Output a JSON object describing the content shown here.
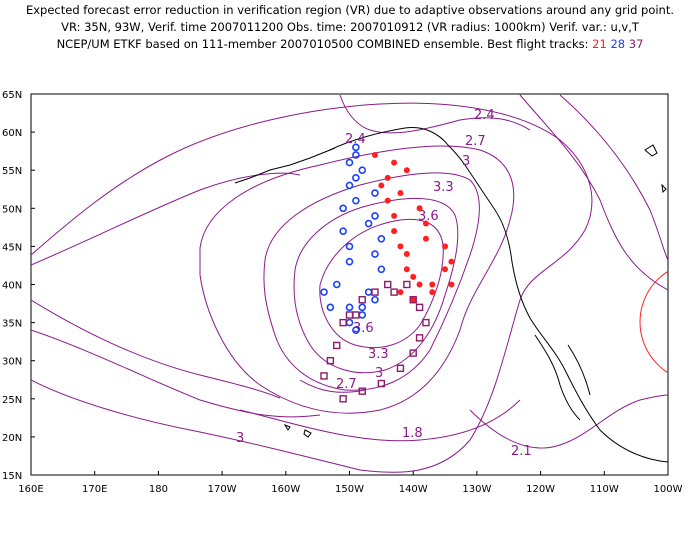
{
  "title": {
    "line1": "Expected forecast error reduction in verification region (VR) due to adaptive observations around any grid point.",
    "line2": "VR: 35N, 93W, Verif. time 2007011200   Obs. time: 2007010912 (VR radius: 1000km)   Verif. var.: u,v,T",
    "line3_prefix": "NCEP/UM ETKF based on 111-member 2007010500 COMBINED ensemble.  Best flight tracks:",
    "track_21": "21",
    "track_28": "28",
    "track_37": "37"
  },
  "axes": {
    "lat_labels": [
      "65N",
      "60N",
      "55N",
      "50N",
      "45N",
      "40N",
      "35N",
      "30N",
      "25N",
      "20N",
      "15N"
    ],
    "lon_labels": [
      "160E",
      "170E",
      "180",
      "170W",
      "160W",
      "150W",
      "140W",
      "130W",
      "120W",
      "110W",
      "100W"
    ]
  },
  "contour_labels": [
    "2.4",
    "2.7",
    "3",
    "3.3",
    "3.6",
    "3.6",
    "3.3",
    "3",
    "2.7",
    "3",
    "2.4",
    "1.8",
    "2.1"
  ],
  "colors": {
    "contour": "#8b1a8b",
    "track_21": "#ff2020",
    "track_28": "#1a3fff",
    "track_37": "#8b1a6b",
    "vr_circle": "#ff2020",
    "coast": "#000000"
  },
  "tracks": {
    "track_21": [
      [
        -146,
        57
      ],
      [
        -143,
        56
      ],
      [
        -141,
        55
      ],
      [
        -144,
        54
      ],
      [
        -145,
        53
      ],
      [
        -142,
        52
      ],
      [
        -144,
        51
      ],
      [
        -139,
        50
      ],
      [
        -143,
        49
      ],
      [
        -138,
        48
      ],
      [
        -143,
        47
      ],
      [
        -138,
        46
      ],
      [
        -142,
        45
      ],
      [
        -135,
        45
      ],
      [
        -141,
        44
      ],
      [
        -134,
        43
      ],
      [
        -141,
        42
      ],
      [
        -135,
        42
      ],
      [
        -140,
        41
      ],
      [
        -134,
        40
      ],
      [
        -137,
        40
      ],
      [
        -139,
        40
      ],
      [
        -137,
        39
      ],
      [
        -142,
        39
      ],
      [
        -140,
        38
      ]
    ],
    "track_28": [
      [
        -149,
        58
      ],
      [
        -149,
        57
      ],
      [
        -150,
        56
      ],
      [
        -148,
        55
      ],
      [
        -149,
        54
      ],
      [
        -150,
        53
      ],
      [
        -146,
        52
      ],
      [
        -149,
        51
      ],
      [
        -151,
        50
      ],
      [
        -146,
        49
      ],
      [
        -147,
        48
      ],
      [
        -151,
        47
      ],
      [
        -145,
        46
      ],
      [
        -150,
        45
      ],
      [
        -146,
        44
      ],
      [
        -150,
        43
      ],
      [
        -145,
        42
      ],
      [
        -152,
        40
      ],
      [
        -147,
        39
      ],
      [
        -146,
        38
      ],
      [
        -150,
        37
      ],
      [
        -148,
        37
      ],
      [
        -148,
        36
      ],
      [
        -150,
        35
      ],
      [
        -149,
        34
      ],
      [
        -154,
        39
      ],
      [
        -153,
        37
      ]
    ],
    "track_37": [
      [
        -148,
        38
      ],
      [
        -146,
        39
      ],
      [
        -143,
        39
      ],
      [
        -144,
        40
      ],
      [
        -141,
        40
      ],
      [
        -140,
        38
      ],
      [
        -139,
        37
      ],
      [
        -138,
        35
      ],
      [
        -139,
        33
      ],
      [
        -140,
        31
      ],
      [
        -142,
        29
      ],
      [
        -145,
        27
      ],
      [
        -148,
        26
      ],
      [
        -151,
        25
      ],
      [
        -154,
        28
      ],
      [
        -153,
        30
      ],
      [
        -152,
        32
      ],
      [
        -151,
        35
      ],
      [
        -150,
        36
      ],
      [
        -149,
        36
      ]
    ]
  }
}
